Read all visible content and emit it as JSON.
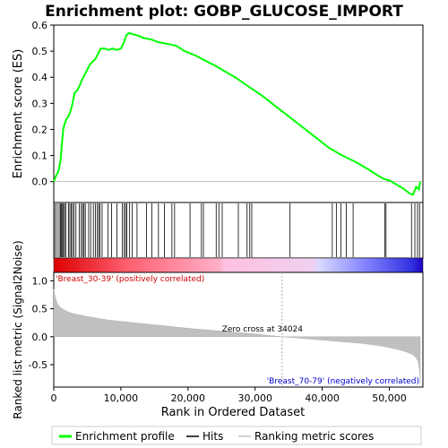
{
  "chart_data": {
    "type": "line",
    "title": "Enrichment plot: GOBP_GLUCOSE_IMPORT",
    "x_range": [
      0,
      55000
    ],
    "es_panel": {
      "ylabel": "Enrichment score (ES)",
      "ylim": [
        -0.08,
        0.6
      ],
      "yticks": [
        "0.0",
        "0.1",
        "0.2",
        "0.3",
        "0.4",
        "0.5",
        "0.6"
      ],
      "ytick_values": [
        0.0,
        0.1,
        0.2,
        0.3,
        0.4,
        0.5,
        0.6
      ],
      "series": [
        {
          "name": "Enrichment profile",
          "color": "#00ff00",
          "x": [
            0,
            300,
            700,
            1000,
            1200,
            1400,
            1600,
            1900,
            2200,
            2500,
            2800,
            3100,
            3500,
            3900,
            4200,
            4600,
            5000,
            5400,
            5800,
            6200,
            6600,
            7000,
            7600,
            8200,
            8800,
            9400,
            10000,
            10400,
            10800,
            11200,
            11800,
            12500,
            13500,
            14500,
            15500,
            16500,
            17500,
            18300,
            19500,
            21000,
            22500,
            24000,
            25000,
            27000,
            29000,
            31000,
            33000,
            35000,
            37000,
            39000,
            41000,
            43000,
            45000,
            47000,
            48500,
            49200,
            50000,
            51000,
            52000,
            53000,
            53500,
            54000,
            54400,
            54600
          ],
          "y": [
            0.0,
            0.02,
            0.04,
            0.08,
            0.14,
            0.2,
            0.22,
            0.24,
            0.25,
            0.27,
            0.3,
            0.34,
            0.35,
            0.37,
            0.39,
            0.41,
            0.43,
            0.45,
            0.46,
            0.47,
            0.49,
            0.51,
            0.51,
            0.505,
            0.51,
            0.505,
            0.51,
            0.53,
            0.56,
            0.57,
            0.565,
            0.56,
            0.55,
            0.545,
            0.535,
            0.53,
            0.525,
            0.52,
            0.5,
            0.485,
            0.465,
            0.445,
            0.43,
            0.4,
            0.365,
            0.33,
            0.29,
            0.25,
            0.21,
            0.17,
            0.13,
            0.1,
            0.075,
            0.045,
            0.02,
            0.01,
            0.005,
            -0.01,
            -0.025,
            -0.045,
            -0.05,
            -0.02,
            -0.03,
            0.0
          ]
        }
      ]
    },
    "hits_panel": {
      "series_name": "Hits",
      "hit_positions": [
        200,
        500,
        800,
        1000,
        1150,
        1300,
        1450,
        1600,
        1800,
        2200,
        2400,
        2600,
        2800,
        3000,
        3300,
        3800,
        4100,
        4300,
        4500,
        4700,
        5200,
        5500,
        5900,
        6200,
        6500,
        6700,
        6900,
        7200,
        8100,
        8600,
        9400,
        10200,
        10500,
        10700,
        10900,
        11300,
        11700,
        12400,
        13800,
        14600,
        15600,
        16500,
        17600,
        18000,
        20300,
        22000,
        22300,
        24200,
        24600,
        25100,
        27500,
        28800,
        29200,
        29500,
        35200,
        41500,
        42100,
        42800,
        43600,
        44600,
        49300,
        49500,
        53300,
        53800,
        54200,
        54500
      ]
    },
    "rank_bar": {
      "positive_label": "'Breast_30-39' (positively correlated)",
      "negative_label": "'Breast_70-79' (negatively correlated)",
      "positive_color": "#ff0000",
      "negative_color": "#0000ff"
    },
    "metric_panel": {
      "ylabel": "Ranked list metric (Signal2Noise)",
      "xlabel": "Rank in Ordered Dataset",
      "ylim": [
        -0.9,
        1.15
      ],
      "yticks": [
        "-0.5",
        "0.0",
        "0.5",
        "1.0"
      ],
      "ytick_values": [
        -0.5,
        0.0,
        0.5,
        1.0
      ],
      "xticks": [
        "0",
        "10,000",
        "20,000",
        "30,000",
        "40,000",
        "50,000"
      ],
      "xtick_values": [
        0,
        10000,
        20000,
        30000,
        40000,
        50000
      ],
      "zero_cross": 34024,
      "zero_cross_label": "Zero cross at 34024",
      "series_name": "Ranking metric scores",
      "fill_color": "#c0c0c0",
      "x": [
        0,
        200,
        500,
        1000,
        2000,
        3000,
        5000,
        8000,
        12000,
        16000,
        20000,
        25000,
        30000,
        34024,
        38000,
        42000,
        46000,
        49000,
        51000,
        52500,
        53500,
        54000,
        54300,
        54500,
        54600
      ],
      "y": [
        0.85,
        0.72,
        0.6,
        0.52,
        0.45,
        0.41,
        0.36,
        0.3,
        0.25,
        0.2,
        0.15,
        0.1,
        0.05,
        0.0,
        -0.04,
        -0.08,
        -0.12,
        -0.17,
        -0.22,
        -0.27,
        -0.32,
        -0.38,
        -0.45,
        -0.6,
        -0.85
      ]
    },
    "legend": [
      {
        "label": "Enrichment profile",
        "color": "#00ff00"
      },
      {
        "label": "Hits",
        "color": "#000000"
      },
      {
        "label": "Ranking metric scores",
        "color": "#c0c0c0"
      }
    ]
  }
}
